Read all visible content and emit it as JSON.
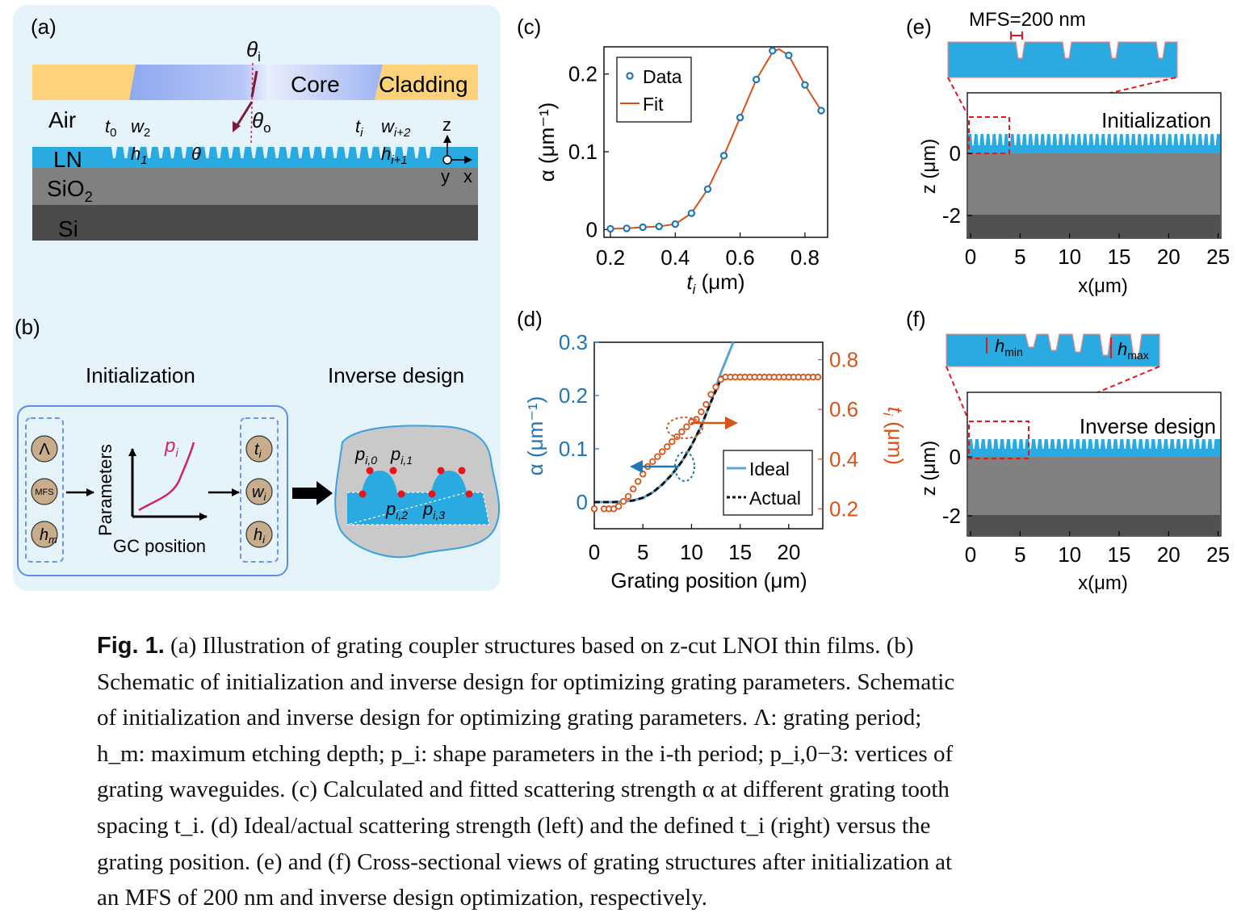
{
  "panels": {
    "a": {
      "label": "(a)",
      "theta_i": "θ",
      "theta_i_sub": "i",
      "theta_o": "θ",
      "theta_o_sub": "o",
      "core": "Core",
      "cladding": "Cladding",
      "air": "Air",
      "ln": "LN",
      "sio2": "SiO",
      "sio2_sub": "2",
      "si": "Si",
      "t0": "t",
      "t0_sub": "0",
      "w2": "w",
      "w2_sub": "2",
      "h1": "h",
      "h1_sub": "1",
      "theta": "θ",
      "ti": "t",
      "ti_sub": "i",
      "wi2": "w",
      "wi2_sub": "i+2",
      "hi1": "h",
      "hi1_sub": "i+1",
      "axis_z": "z",
      "axis_y": "y",
      "axis_x": "x"
    },
    "b": {
      "label": "(b)",
      "init_title": "Initialization",
      "inv_title": "Inverse design",
      "lambda": "Λ",
      "mfs": "MFS",
      "hm": "h",
      "hm_sub": "m",
      "params_axis": "Parameters",
      "gc_axis": "GC position",
      "pi": "p",
      "pi_sub": "i",
      "ti": "t",
      "ti_sub": "i",
      "wi": "w",
      "wi_sub": "i",
      "hi": "h",
      "hi_sub": "i",
      "p0": "p",
      "p0_sub": "i,0",
      "p1": "p",
      "p1_sub": "i,1",
      "p2": "p",
      "p2_sub": "i,2",
      "p3": "p",
      "p3_sub": "i,3"
    },
    "c": {
      "label": "(c)"
    },
    "d": {
      "label": "(d)"
    },
    "e": {
      "label": "(e)",
      "mfs_text": "MFS=200 nm",
      "inset_label": "Initialization",
      "ylabel": "z (μm)",
      "xlabel": "x(μm)",
      "xticks": [
        "0",
        "5",
        "10",
        "15",
        "20",
        "25"
      ],
      "yticks": [
        "0",
        "-2"
      ]
    },
    "f": {
      "label": "(f)",
      "hmin": "h",
      "hmin_sub": "min",
      "hmax": "h",
      "hmax_sub": "max",
      "inset_label": "Inverse design",
      "ylabel": "z (μm)",
      "xlabel": "x(μm)",
      "xticks": [
        "0",
        "5",
        "10",
        "15",
        "20",
        "25"
      ],
      "yticks": [
        "0",
        "-2"
      ]
    }
  },
  "chart_data": [
    {
      "type": "line",
      "panel": "c",
      "xlabel": "t",
      "xlabel_sub": "i",
      "xlabel_unit": " (μm)",
      "ylabel": "α (μm⁻¹)",
      "xlim": [
        0.18,
        0.87
      ],
      "ylim": [
        -0.01,
        0.235
      ],
      "xticks": [
        0.2,
        0.4,
        0.6,
        0.8
      ],
      "yticks": [
        0,
        0.1,
        0.2
      ],
      "legend": "top-left",
      "series": [
        {
          "name": "Data",
          "style": "markers",
          "color": "#1f77b4",
          "x": [
            0.2,
            0.25,
            0.3,
            0.35,
            0.4,
            0.45,
            0.5,
            0.55,
            0.6,
            0.65,
            0.7,
            0.75,
            0.8,
            0.85
          ],
          "y": [
            0.001,
            0.0015,
            0.003,
            0.004,
            0.007,
            0.021,
            0.052,
            0.095,
            0.144,
            0.193,
            0.23,
            0.224,
            0.186,
            0.153
          ]
        },
        {
          "name": "Fit",
          "style": "line",
          "color": "#d95319",
          "x": [
            0.2,
            0.25,
            0.3,
            0.35,
            0.4,
            0.45,
            0.5,
            0.55,
            0.6,
            0.65,
            0.7,
            0.72,
            0.75,
            0.8,
            0.85
          ],
          "y": [
            0.001,
            0.0015,
            0.003,
            0.004,
            0.007,
            0.021,
            0.052,
            0.095,
            0.144,
            0.193,
            0.228,
            0.232,
            0.224,
            0.186,
            0.153
          ]
        }
      ]
    },
    {
      "type": "line",
      "panel": "d",
      "xlabel": "Grating position (μm)",
      "ylabel": "α (μm⁻¹)",
      "y2label": "t",
      "y2label_sub": "i",
      "y2label_unit": " (μm)",
      "xlim": [
        0,
        23.5
      ],
      "ylim": [
        -0.05,
        0.3
      ],
      "y2lim": [
        0.12,
        0.87
      ],
      "xticks": [
        0,
        5,
        10,
        15,
        20
      ],
      "yticks": [
        0,
        0.1,
        0.2,
        0.3
      ],
      "y2ticks": [
        0.2,
        0.4,
        0.6,
        0.8
      ],
      "legend": "bottom-right",
      "series": [
        {
          "name": "Ideal",
          "style": "line",
          "axis": "left",
          "color": "#5aa5d8",
          "x": [
            0,
            1,
            2,
            3,
            4,
            5,
            6,
            7,
            8,
            9,
            10,
            11,
            12,
            13,
            14.3
          ],
          "y": [
            0,
            0,
            0,
            0.001,
            0.003,
            0.008,
            0.018,
            0.033,
            0.052,
            0.076,
            0.106,
            0.143,
            0.188,
            0.242,
            0.3
          ]
        },
        {
          "name": "Actual",
          "style": "dotted",
          "axis": "left",
          "color": "#111111",
          "x": [
            0,
            1,
            2,
            3,
            4,
            5,
            6,
            7,
            8,
            9,
            10,
            11,
            12,
            13
          ],
          "y": [
            0,
            0,
            0,
            0.001,
            0.003,
            0.008,
            0.018,
            0.033,
            0.052,
            0.076,
            0.106,
            0.143,
            0.188,
            0.23
          ]
        },
        {
          "name": "Actual",
          "style": "dotted",
          "axis": "right",
          "color": "#111111",
          "x": [
            13,
            14,
            15,
            16,
            17,
            18,
            19,
            20,
            21,
            22,
            23
          ],
          "y": [
            0.73,
            0.73,
            0.73,
            0.73,
            0.73,
            0.73,
            0.73,
            0.73,
            0.73,
            0.73,
            0.73
          ]
        },
        {
          "name": "t_i",
          "style": "markers",
          "axis": "right",
          "color": "#d95319",
          "x": [
            0,
            1,
            1.5,
            2,
            2.5,
            3,
            3.5,
            4,
            4.5,
            5,
            5.5,
            6,
            6.5,
            7,
            7.5,
            8,
            8.5,
            9,
            9.5,
            10,
            10.5,
            11,
            11.5,
            12,
            12.5,
            13,
            13.5,
            14,
            14.5,
            15,
            15.5,
            16,
            16.5,
            17,
            17.5,
            18,
            18.5,
            19,
            19.5,
            20,
            20.5,
            21,
            21.5,
            22,
            22.5,
            23
          ],
          "y": [
            0.2,
            0.2,
            0.2,
            0.2,
            0.21,
            0.23,
            0.25,
            0.28,
            0.31,
            0.34,
            0.37,
            0.39,
            0.41,
            0.43,
            0.45,
            0.47,
            0.49,
            0.51,
            0.53,
            0.55,
            0.56,
            0.59,
            0.62,
            0.66,
            0.69,
            0.72,
            0.73,
            0.73,
            0.73,
            0.73,
            0.73,
            0.73,
            0.73,
            0.73,
            0.73,
            0.73,
            0.73,
            0.73,
            0.73,
            0.73,
            0.73,
            0.73,
            0.73,
            0.73,
            0.73,
            0.73
          ]
        }
      ]
    }
  ],
  "caption": {
    "label": "Fig. 1.",
    "lines": [
      " (a) Illustration of grating coupler structures based on z-cut LNOI thin films. (b)",
      "Schematic of initialization and inverse design for optimizing grating parameters. Schematic",
      "of initialization and inverse design for optimizing grating parameters. Λ: grating period;",
      "h_m: maximum etching depth; p_i: shape parameters in the i-th period; p_i,0−3: vertices of",
      "grating waveguides. (c) Calculated and fitted scattering strength α at different grating tooth",
      "spacing t_i. (d) Ideal/actual scattering strength (left) and the defined t_i (right) versus the",
      "grating position. (e) and (f) Cross-sectional views of grating structures after initialization at",
      "an MFS of 200 nm and inverse design optimization, respectively."
    ]
  }
}
